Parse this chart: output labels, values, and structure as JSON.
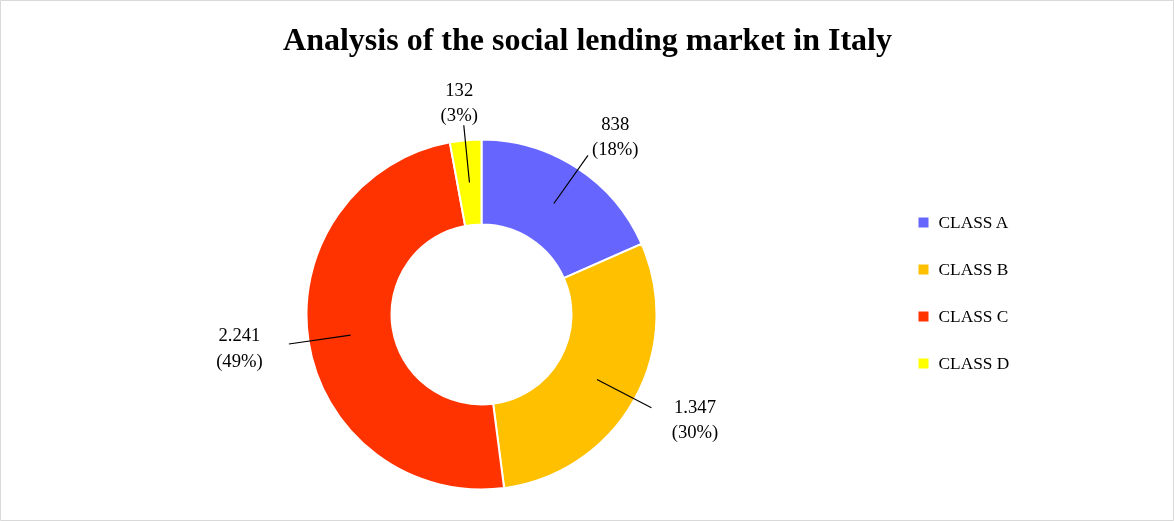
{
  "chart_data": {
    "type": "donut",
    "title": "Analysis of the social lending market in Italy",
    "categories": [
      "CLASS A",
      "CLASS B",
      "CLASS C",
      "CLASS D"
    ],
    "values": [
      838,
      1347,
      2241,
      132
    ],
    "colors": [
      "#6666ff",
      "#ffc000",
      "#ff3300",
      "#ffff00"
    ],
    "value_labels": [
      "838\n(18%)",
      "1.347\n(30%)",
      "2.241\n(49%)",
      "132\n(3%)"
    ],
    "legend": "right"
  }
}
